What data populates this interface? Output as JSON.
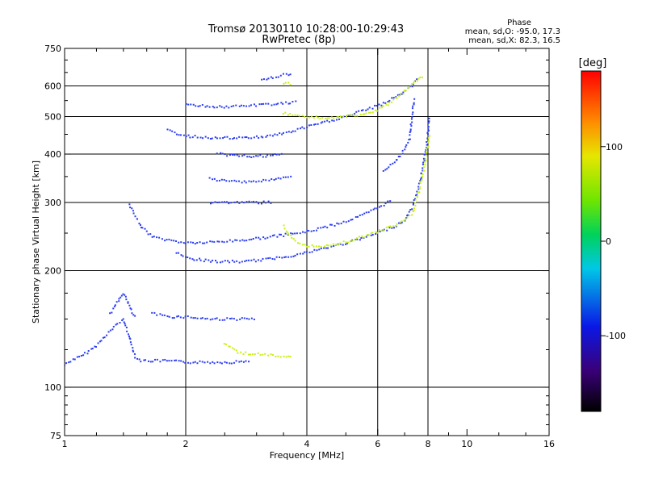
{
  "chart_data": {
    "type": "scatter",
    "title": "Tromsø 20130110 10:28:00-10:29:43",
    "subtitle": "RwPretec (8p)",
    "phase_heading": "Phase",
    "phase_stats": [
      "mean, sd,O: -95.0, 17.3",
      "mean, sd,X:  82.3, 16.5"
    ],
    "xlabel": "Frequency [MHz]",
    "ylabel": "Stationary phase Virtual Height [km]",
    "x_scale": "log",
    "y_scale": "log",
    "xlim": [
      1,
      16
    ],
    "ylim": [
      75,
      750
    ],
    "x_ticks": [
      1,
      2,
      4,
      6,
      8,
      10,
      16
    ],
    "x_tick_labels": [
      "1",
      "2",
      "4",
      "6",
      "8",
      "10",
      "16"
    ],
    "y_ticks": [
      75,
      100,
      200,
      300,
      400,
      500,
      600,
      750
    ],
    "y_tick_labels": [
      "75",
      "100",
      "200",
      "300",
      "400",
      "500",
      "600",
      "750"
    ],
    "grid_x": [
      2,
      4,
      6,
      8
    ],
    "grid_y": [
      100,
      200,
      300,
      400,
      500,
      600
    ],
    "grid": true,
    "colorbar": {
      "label": "[deg]",
      "range": [
        -180,
        180
      ],
      "ticks": [
        100,
        0,
        -100
      ],
      "tick_labels": [
        "100",
        "0",
        "-100"
      ]
    },
    "series": [
      {
        "mode": "O",
        "phase_deg": -95,
        "color": "#2a3cf0",
        "traces": [
          {
            "points": [
              [
                1.0,
                114
              ],
              [
                1.05,
                118
              ],
              [
                1.1,
                120
              ],
              [
                1.15,
                124
              ],
              [
                1.2,
                128
              ],
              [
                1.3,
                140
              ],
              [
                1.4,
                150
              ],
              [
                1.5,
                120
              ],
              [
                1.55,
                117
              ],
              [
                1.8,
                117
              ],
              [
                2.0,
                116
              ],
              [
                2.3,
                116
              ],
              [
                2.6,
                116
              ],
              [
                2.9,
                117
              ]
            ]
          },
          {
            "points": [
              [
                1.3,
                155
              ],
              [
                1.35,
                165
              ],
              [
                1.4,
                175
              ],
              [
                1.45,
                162
              ],
              [
                1.5,
                150
              ]
            ]
          },
          {
            "points": [
              [
                1.65,
                155
              ],
              [
                1.75,
                153
              ],
              [
                1.85,
                152
              ],
              [
                2.0,
                152
              ],
              [
                2.3,
                150
              ],
              [
                2.5,
                150
              ],
              [
                2.8,
                150
              ],
              [
                3.0,
                150
              ]
            ]
          },
          {
            "points": [
              [
                1.45,
                295
              ],
              [
                1.55,
                260
              ],
              [
                1.65,
                245
              ],
              [
                1.8,
                240
              ],
              [
                2.0,
                236
              ],
              [
                2.2,
                236
              ],
              [
                2.5,
                238
              ],
              [
                2.8,
                240
              ],
              [
                3.2,
                244
              ],
              [
                3.6,
                248
              ],
              [
                4.0,
                252
              ],
              [
                4.5,
                260
              ],
              [
                5.0,
                268
              ],
              [
                5.5,
                278
              ],
              [
                6.0,
                290
              ],
              [
                6.5,
                305
              ]
            ]
          },
          {
            "points": [
              [
                1.9,
                222
              ],
              [
                2.1,
                214
              ],
              [
                2.4,
                211
              ],
              [
                2.8,
                211
              ],
              [
                3.2,
                214
              ],
              [
                3.8,
                220
              ],
              [
                4.4,
                228
              ],
              [
                5.2,
                238
              ],
              [
                6.0,
                250
              ],
              [
                6.6,
                260
              ],
              [
                7.0,
                270
              ],
              [
                7.3,
                290
              ],
              [
                7.6,
                330
              ],
              [
                7.8,
                380
              ],
              [
                7.95,
                430
              ],
              [
                8.1,
                500
              ]
            ]
          },
          {
            "points": [
              [
                1.8,
                460
              ],
              [
                2.0,
                445
              ],
              [
                2.4,
                440
              ],
              [
                2.8,
                440
              ],
              [
                3.2,
                445
              ],
              [
                3.6,
                455
              ],
              [
                4.0,
                470
              ],
              [
                4.5,
                485
              ],
              [
                5.0,
                500
              ],
              [
                5.6,
                520
              ],
              [
                6.2,
                540
              ],
              [
                6.8,
                570
              ],
              [
                7.3,
                600
              ],
              [
                7.6,
                630
              ]
            ]
          },
          {
            "points": [
              [
                2.0,
                540
              ],
              [
                2.3,
                530
              ],
              [
                2.6,
                530
              ],
              [
                3.0,
                535
              ],
              [
                3.4,
                540
              ],
              [
                3.8,
                545
              ]
            ]
          },
          {
            "points": [
              [
                2.4,
                400
              ],
              [
                2.8,
                395
              ],
              [
                3.2,
                395
              ],
              [
                3.5,
                400
              ]
            ]
          },
          {
            "points": [
              [
                2.3,
                345
              ],
              [
                2.6,
                340
              ],
              [
                3.0,
                340
              ],
              [
                3.4,
                345
              ],
              [
                3.7,
                350
              ]
            ]
          },
          {
            "points": [
              [
                2.3,
                300
              ],
              [
                2.6,
                300
              ],
              [
                3.0,
                300
              ],
              [
                3.3,
                300
              ]
            ]
          },
          {
            "points": [
              [
                3.1,
                625
              ],
              [
                3.3,
                630
              ],
              [
                3.5,
                640
              ],
              [
                3.7,
                640
              ]
            ]
          },
          {
            "points": [
              [
                6.2,
                360
              ],
              [
                6.6,
                380
              ],
              [
                6.9,
                400
              ],
              [
                7.2,
                440
              ],
              [
                7.3,
                500
              ],
              [
                7.4,
                560
              ]
            ]
          }
        ]
      },
      {
        "mode": "X",
        "phase_deg": 82,
        "color": "#c8f014",
        "traces": [
          {
            "points": [
              [
                2.5,
                130
              ],
              [
                2.7,
                123
              ],
              [
                2.9,
                122
              ],
              [
                3.2,
                121
              ],
              [
                3.5,
                120
              ],
              [
                3.7,
                119
              ]
            ]
          },
          {
            "points": [
              [
                3.5,
                260
              ],
              [
                3.7,
                240
              ],
              [
                4.0,
                232
              ],
              [
                4.6,
                232
              ],
              [
                5.2,
                240
              ],
              [
                6.0,
                252
              ],
              [
                6.8,
                265
              ],
              [
                7.3,
                280
              ],
              [
                7.6,
                320
              ],
              [
                7.8,
                360
              ],
              [
                8.0,
                420
              ],
              [
                8.1,
                450
              ]
            ]
          },
          {
            "points": [
              [
                3.5,
                510
              ],
              [
                4.0,
                500
              ],
              [
                4.5,
                495
              ],
              [
                5.0,
                500
              ],
              [
                5.5,
                505
              ],
              [
                6.0,
                520
              ],
              [
                6.5,
                545
              ],
              [
                7.0,
                580
              ],
              [
                7.5,
                620
              ],
              [
                7.8,
                640
              ]
            ]
          },
          {
            "points": [
              [
                3.5,
                610
              ],
              [
                3.7,
                605
              ]
            ]
          }
        ]
      }
    ]
  }
}
